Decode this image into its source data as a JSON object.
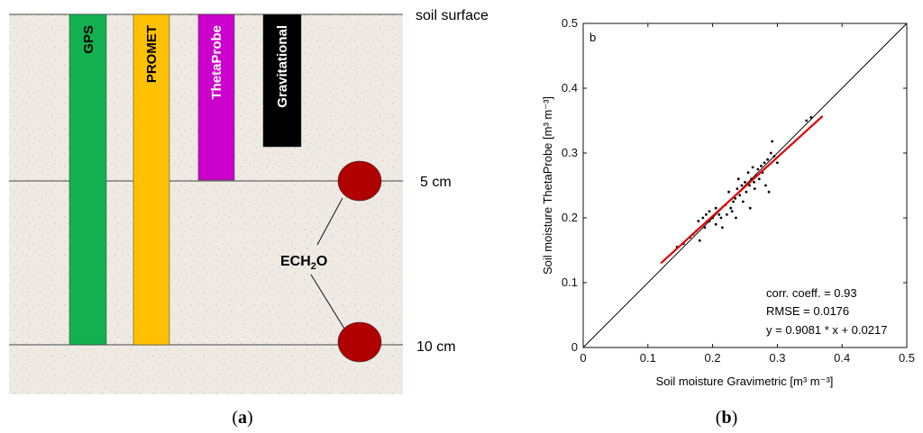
{
  "panel_a": {
    "label_open": "(",
    "label_letter": "a",
    "label_close": ")",
    "depth_labels": {
      "surface": "soil surface",
      "d5": "5 cm",
      "d10": "10 cm"
    },
    "probes": [
      {
        "name": "GPS",
        "color": "#12b04f",
        "text_color": "#000000"
      },
      {
        "name": "PROMET",
        "color": "#ffc000",
        "text_color": "#000000"
      },
      {
        "name": "ThetaProbe",
        "color": "#cc00cc",
        "text_color": "#ffffff"
      },
      {
        "name": "Gravitational",
        "color": "#000000",
        "text_color": "#ffffff"
      }
    ],
    "sensor": {
      "label_main": "ECH",
      "label_sub": "2",
      "label_end": "O",
      "color": "#b00000"
    },
    "soil_color": "#efebe4"
  },
  "panel_b": {
    "label_open": "(",
    "label_letter": "b",
    "label_close": ")",
    "corner_letter": "b",
    "stats": {
      "corr": "corr. coeff. = 0.93",
      "rmse": "RMSE = 0.0176",
      "equation": "y = 0.9081 * x + 0.0217"
    }
  },
  "chart_data": {
    "type": "scatter",
    "xlabel": "Soil moisture Gravimetric [m³ m⁻³]",
    "ylabel": "Soil moisture ThetaProbe [m³ m⁻³]",
    "xlim": [
      0,
      0.5
    ],
    "ylim": [
      0,
      0.5
    ],
    "xticks": [
      "0",
      "0.1",
      "0.2",
      "0.3",
      "0.4",
      "0.5"
    ],
    "yticks": [
      "0",
      "0.1",
      "0.2",
      "0.3",
      "0.4",
      "0.5"
    ],
    "grid": false,
    "one_to_one_line": {
      "x": [
        0,
        0.5
      ],
      "y": [
        0,
        0.5
      ],
      "color": "#000000"
    },
    "fit_line": {
      "x": [
        0.12,
        0.37
      ],
      "y": [
        0.13,
        0.357
      ],
      "slope": 0.9081,
      "intercept": 0.0217,
      "color": "#e00000"
    },
    "points": [
      [
        0.145,
        0.155
      ],
      [
        0.155,
        0.16
      ],
      [
        0.165,
        0.17
      ],
      [
        0.17,
        0.175
      ],
      [
        0.175,
        0.18
      ],
      [
        0.178,
        0.195
      ],
      [
        0.18,
        0.165
      ],
      [
        0.185,
        0.2
      ],
      [
        0.188,
        0.185
      ],
      [
        0.19,
        0.205
      ],
      [
        0.195,
        0.21
      ],
      [
        0.195,
        0.195
      ],
      [
        0.2,
        0.2
      ],
      [
        0.205,
        0.215
      ],
      [
        0.205,
        0.19
      ],
      [
        0.21,
        0.205
      ],
      [
        0.213,
        0.2
      ],
      [
        0.215,
        0.185
      ],
      [
        0.22,
        0.22
      ],
      [
        0.222,
        0.205
      ],
      [
        0.225,
        0.24
      ],
      [
        0.228,
        0.215
      ],
      [
        0.23,
        0.21
      ],
      [
        0.232,
        0.225
      ],
      [
        0.235,
        0.23
      ],
      [
        0.236,
        0.2
      ],
      [
        0.238,
        0.245
      ],
      [
        0.24,
        0.26
      ],
      [
        0.242,
        0.235
      ],
      [
        0.245,
        0.25
      ],
      [
        0.247,
        0.225
      ],
      [
        0.25,
        0.255
      ],
      [
        0.252,
        0.24
      ],
      [
        0.255,
        0.27
      ],
      [
        0.257,
        0.25
      ],
      [
        0.258,
        0.215
      ],
      [
        0.26,
        0.26
      ],
      [
        0.262,
        0.278
      ],
      [
        0.264,
        0.255
      ],
      [
        0.265,
        0.245
      ],
      [
        0.268,
        0.265
      ],
      [
        0.27,
        0.275
      ],
      [
        0.272,
        0.26
      ],
      [
        0.275,
        0.28
      ],
      [
        0.277,
        0.27
      ],
      [
        0.28,
        0.285
      ],
      [
        0.282,
        0.25
      ],
      [
        0.285,
        0.29
      ],
      [
        0.287,
        0.24
      ],
      [
        0.29,
        0.3
      ],
      [
        0.292,
        0.318
      ],
      [
        0.295,
        0.295
      ],
      [
        0.3,
        0.285
      ],
      [
        0.345,
        0.35
      ],
      [
        0.352,
        0.355
      ]
    ]
  }
}
